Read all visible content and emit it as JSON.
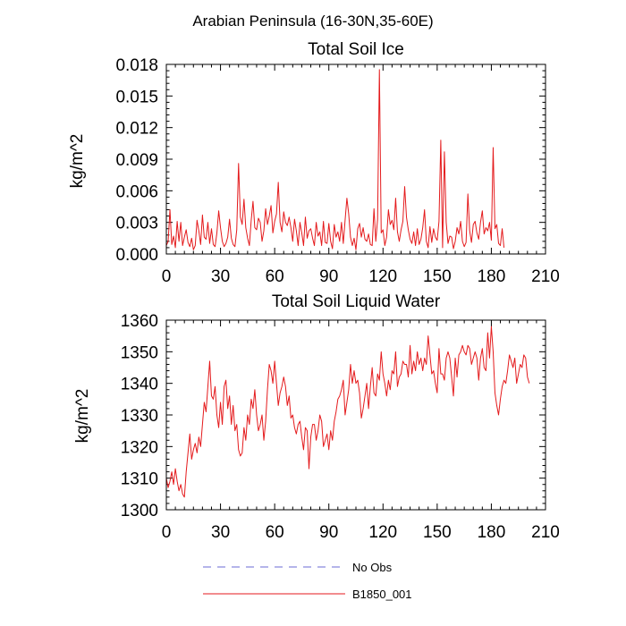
{
  "figure_title": "Arabian Peninsula (16-30N,35-60E)",
  "legend": [
    {
      "label": "No Obs",
      "color": "#6b6bd6",
      "style": "dashed"
    },
    {
      "label": "B1850_001",
      "color": "#e41a1c",
      "style": "solid"
    }
  ],
  "chart_data": [
    {
      "type": "line",
      "title": "Total Soil Ice",
      "xlabel": "",
      "ylabel": "kg/m^2",
      "xlim": [
        0,
        210
      ],
      "ylim": [
        0,
        0.018
      ],
      "xticks": [
        0,
        30,
        60,
        90,
        120,
        150,
        180,
        210
      ],
      "xtick_labels": [
        "0",
        "30",
        "60",
        "90",
        "120",
        "150",
        "180",
        "210"
      ],
      "yticks": [
        0,
        0.003,
        0.006,
        0.009,
        0.012,
        0.015,
        0.018
      ],
      "ytick_labels": [
        "0.000",
        "0.003",
        "0.006",
        "0.009",
        "0.012",
        "0.015",
        "0.018"
      ],
      "series": [
        {
          "name": "B1850_001",
          "color": "#e41a1c",
          "x_start": 0,
          "x_step": 1,
          "values": [
            0.0008,
            0.0012,
            0.0042,
            0.0009,
            0.0017,
            0.0006,
            0.0031,
            0.0012,
            0.003,
            0.0008,
            0.0016,
            0.0023,
            0.0011,
            0.0007,
            0.0015,
            0.0004,
            0.0008,
            0.0032,
            0.0022,
            0.0009,
            0.0037,
            0.0016,
            0.0014,
            0.003,
            0.001,
            0.0024,
            0.0009,
            0.0007,
            0.002,
            0.0041,
            0.0025,
            0.0012,
            0.0007,
            0.001,
            0.0016,
            0.0033,
            0.0015,
            0.0009,
            0.0007,
            0.0023,
            0.0086,
            0.0035,
            0.0028,
            0.0052,
            0.0025,
            0.0015,
            0.0008,
            0.0032,
            0.005,
            0.0025,
            0.0023,
            0.0034,
            0.003,
            0.0012,
            0.0022,
            0.0043,
            0.0028,
            0.0036,
            0.0046,
            0.002,
            0.0031,
            0.0038,
            0.0068,
            0.003,
            0.0021,
            0.004,
            0.003,
            0.0027,
            0.0035,
            0.0025,
            0.0012,
            0.0033,
            0.0022,
            0.0008,
            0.003,
            0.002,
            0.0008,
            0.0035,
            0.0015,
            0.0022,
            0.0024,
            0.0015,
            0.0008,
            0.003,
            0.0017,
            0.0021,
            0.0008,
            0.0031,
            0.0011,
            0.001,
            0.0029,
            0.0012,
            0.0005,
            0.0028,
            0.0016,
            0.0021,
            0.0012,
            0.003,
            0.001,
            0.0032,
            0.0053,
            0.0038,
            0.0016,
            0.0008,
            0.0015,
            0.0004,
            0.0024,
            0.0029,
            0.0016,
            0.0025,
            0.0014,
            0.0012,
            0.0019,
            0.0009,
            0.0008,
            0.0043,
            0.0012,
            0.0033,
            0.0175,
            0.002,
            0.0023,
            0.0008,
            0.0016,
            0.0042,
            0.0028,
            0.0032,
            0.0023,
            0.0053,
            0.0021,
            0.0012,
            0.0023,
            0.0031,
            0.0064,
            0.0035,
            0.0023,
            0.0014,
            0.001,
            0.0021,
            0.0008,
            0.0024,
            0.0009,
            0.0014,
            0.0025,
            0.0042,
            0.0012,
            0.0006,
            0.0026,
            0.0011,
            0.0024,
            0.0016,
            0.0013,
            0.0031,
            0.0108,
            0.0006,
            0.0097,
            0.003,
            0.001,
            0.0017,
            0.0016,
            0.0005,
            0.0012,
            0.0025,
            0.0019,
            0.0031,
            0.0012,
            0.0007,
            0.0011,
            0.0057,
            0.0022,
            0.0011,
            0.0028,
            0.0031,
            0.002,
            0.0014,
            0.003,
            0.0041,
            0.0019,
            0.0025,
            0.0022,
            0.003,
            0.0013,
            0.0101,
            0.0024,
            0.0028,
            0.001,
            0.0008,
            0.0024,
            0.0006
          ]
        }
      ]
    },
    {
      "type": "line",
      "title": "Total Soil Liquid Water",
      "xlabel": "",
      "ylabel": "kg/m^2",
      "xlim": [
        0,
        210
      ],
      "ylim": [
        1300,
        1360
      ],
      "xticks": [
        0,
        30,
        60,
        90,
        120,
        150,
        180,
        210
      ],
      "xtick_labels": [
        "0",
        "30",
        "60",
        "90",
        "120",
        "150",
        "180",
        "210"
      ],
      "yticks": [
        1300,
        1310,
        1320,
        1330,
        1340,
        1350,
        1360
      ],
      "ytick_labels": [
        "1300",
        "1310",
        "1320",
        "1330",
        "1340",
        "1350",
        "1360"
      ],
      "series": [
        {
          "name": "B1850_001",
          "color": "#e41a1c",
          "x_start": 0,
          "x_step": 1,
          "values": [
            1310,
            1307,
            1309,
            1312,
            1308,
            1313,
            1309,
            1306,
            1308,
            1305,
            1304,
            1312,
            1318,
            1324,
            1316,
            1319,
            1321,
            1318,
            1323,
            1320,
            1327,
            1334,
            1331,
            1339,
            1347,
            1336,
            1335,
            1339,
            1330,
            1326,
            1334,
            1327,
            1339,
            1341,
            1332,
            1336,
            1327,
            1333,
            1325,
            1327,
            1319,
            1317,
            1318,
            1326,
            1322,
            1330,
            1327,
            1335,
            1332,
            1338,
            1330,
            1325,
            1327,
            1330,
            1322,
            1328,
            1338,
            1346,
            1344,
            1340,
            1347,
            1340,
            1333,
            1337,
            1339,
            1342,
            1339,
            1333,
            1336,
            1329,
            1330,
            1326,
            1324,
            1327,
            1328,
            1323,
            1319,
            1326,
            1325,
            1313,
            1323,
            1327,
            1327,
            1322,
            1325,
            1330,
            1328,
            1320,
            1322,
            1324,
            1319,
            1325,
            1322,
            1328,
            1331,
            1335,
            1336,
            1338,
            1341,
            1330,
            1334,
            1338,
            1346,
            1340,
            1344,
            1340,
            1341,
            1337,
            1329,
            1332,
            1336,
            1340,
            1332,
            1339,
            1345,
            1337,
            1336,
            1343,
            1341,
            1350,
            1343,
            1340,
            1336,
            1341,
            1338,
            1344,
            1343,
            1350,
            1339,
            1342,
            1343,
            1347,
            1346,
            1346,
            1342,
            1352,
            1343,
            1347,
            1344,
            1350,
            1346,
            1348,
            1344,
            1348,
            1346,
            1355,
            1349,
            1343,
            1344,
            1340,
            1337,
            1351,
            1343,
            1343,
            1341,
            1348,
            1350,
            1348,
            1342,
            1336,
            1348,
            1342,
            1349,
            1350,
            1352,
            1350,
            1349,
            1352,
            1351,
            1346,
            1348,
            1350,
            1348,
            1341,
            1348,
            1351,
            1345,
            1344,
            1356,
            1348,
            1358,
            1350,
            1337,
            1333,
            1330,
            1335,
            1339,
            1341,
            1340,
            1344,
            1349,
            1347,
            1345,
            1348,
            1340,
            1343,
            1346,
            1345,
            1349,
            1348,
            1342,
            1340
          ]
        }
      ]
    }
  ]
}
